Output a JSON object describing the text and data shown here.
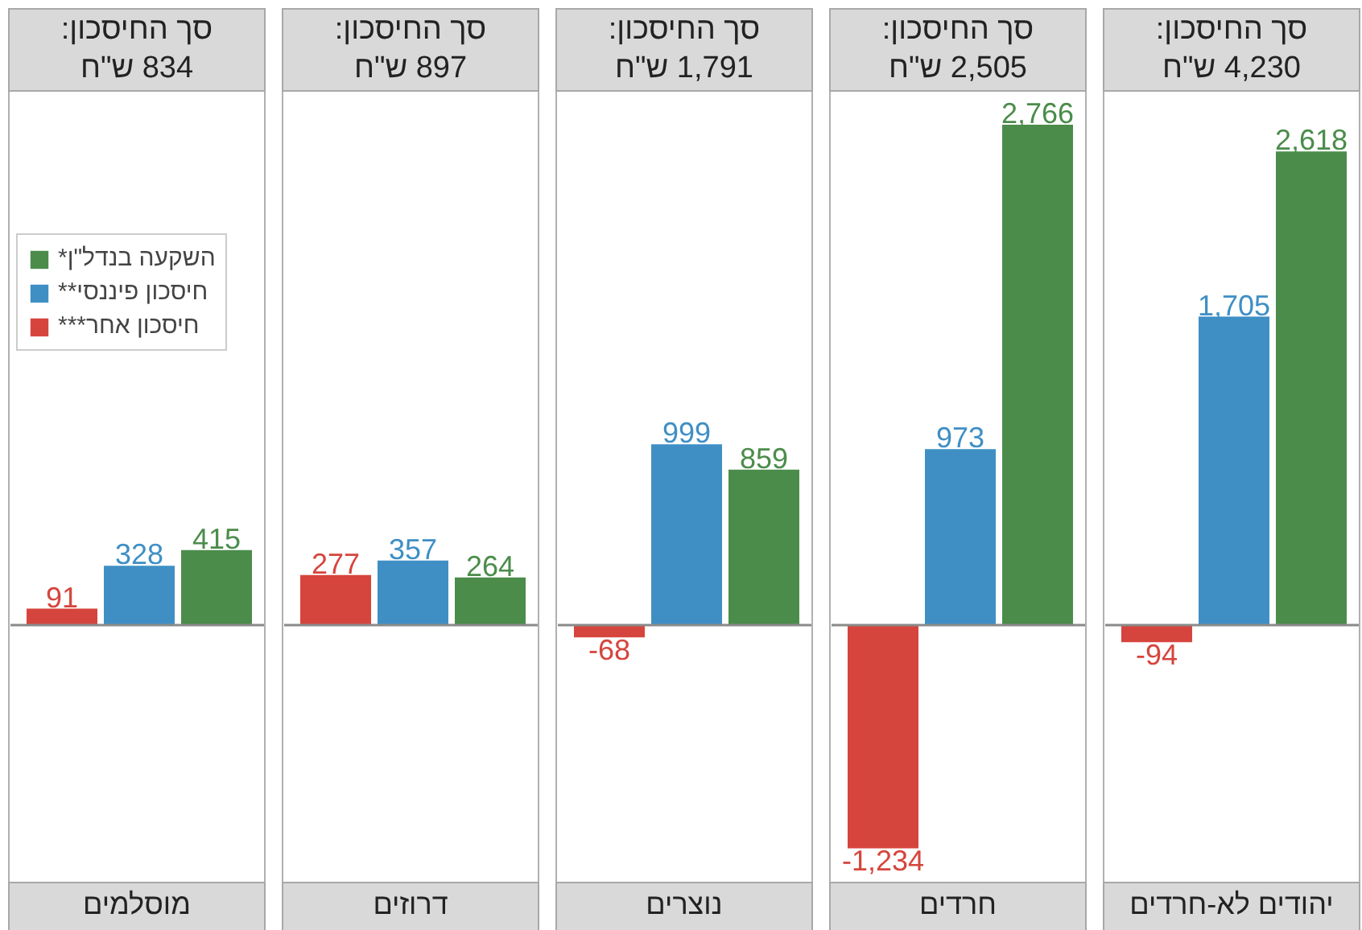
{
  "chart_data": {
    "type": "bar",
    "categories": [
      "מוסלמים",
      "דרוזים",
      "נוצרים",
      "חרדים",
      "יהודים לא-חרדים"
    ],
    "series": [
      {
        "name": "חיסכון אחר***",
        "color": "#d6453d",
        "values": [
          91,
          277,
          -68,
          -1234,
          -94
        ],
        "value_labels": [
          "91",
          "277",
          "-68",
          "-1,234",
          "-94"
        ]
      },
      {
        "name": "חיסכון פיננסי**",
        "color": "#3f8fc5",
        "values": [
          328,
          357,
          999,
          973,
          1705
        ],
        "value_labels": [
          "328",
          "357",
          "999",
          "973",
          "1,705"
        ]
      },
      {
        "name": "השקעה בנדל\"ן*",
        "color": "#4b8c4b",
        "values": [
          415,
          264,
          859,
          2766,
          2618
        ],
        "value_labels": [
          "415",
          "264",
          "859",
          "2,766",
          "2,618"
        ]
      }
    ],
    "annotations": [
      "סך החיסכון:\n834 ש\"ח",
      "סך החיסכון:\n897 ש\"ח",
      "סך החיסכון:\n1,791 ש\"ח",
      "סך החיסכון:\n2,505 ש\"ח",
      "סך החיסכון:\n4,230 ש\"ח"
    ],
    "ref_lines": [
      {
        "axis": "y",
        "value": 0,
        "color": "#8a8a8a"
      }
    ],
    "legend": "top left",
    "grid": false
  }
}
